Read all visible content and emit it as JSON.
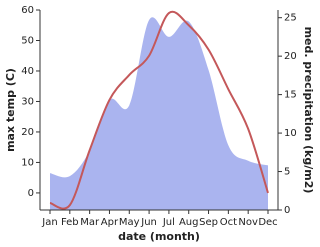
{
  "chart_data": {
    "type": "combo",
    "xlabel": "date (month)",
    "ylabel": "max temp (C)",
    "y2label": "med. precipitation (kg/m2)",
    "categories": [
      "Jan",
      "Feb",
      "Mar",
      "Apr",
      "May",
      "Jun",
      "Jul",
      "Aug",
      "Sep",
      "Oct",
      "Nov",
      "Dec"
    ],
    "ylim": [
      -5.6,
      60
    ],
    "yticks": [
      0,
      10,
      20,
      30,
      40,
      50,
      60
    ],
    "y2lim": [
      0,
      26
    ],
    "y2ticks": [
      0,
      5,
      10,
      15,
      20,
      25
    ],
    "series": [
      {
        "name": "med. precipitation",
        "type": "area",
        "axis": "y2",
        "color": "#aab4ef",
        "values": [
          4.8,
          4.4,
          7.7,
          14.3,
          13.6,
          24.7,
          22.5,
          24.5,
          18.2,
          8.4,
          6.4,
          5.8
        ]
      },
      {
        "name": "max temp",
        "type": "line",
        "color": "#c4585a",
        "values": [
          -3.3,
          -4,
          14,
          30.5,
          38.7,
          45,
          59,
          55,
          47,
          34,
          21,
          0
        ]
      }
    ]
  }
}
